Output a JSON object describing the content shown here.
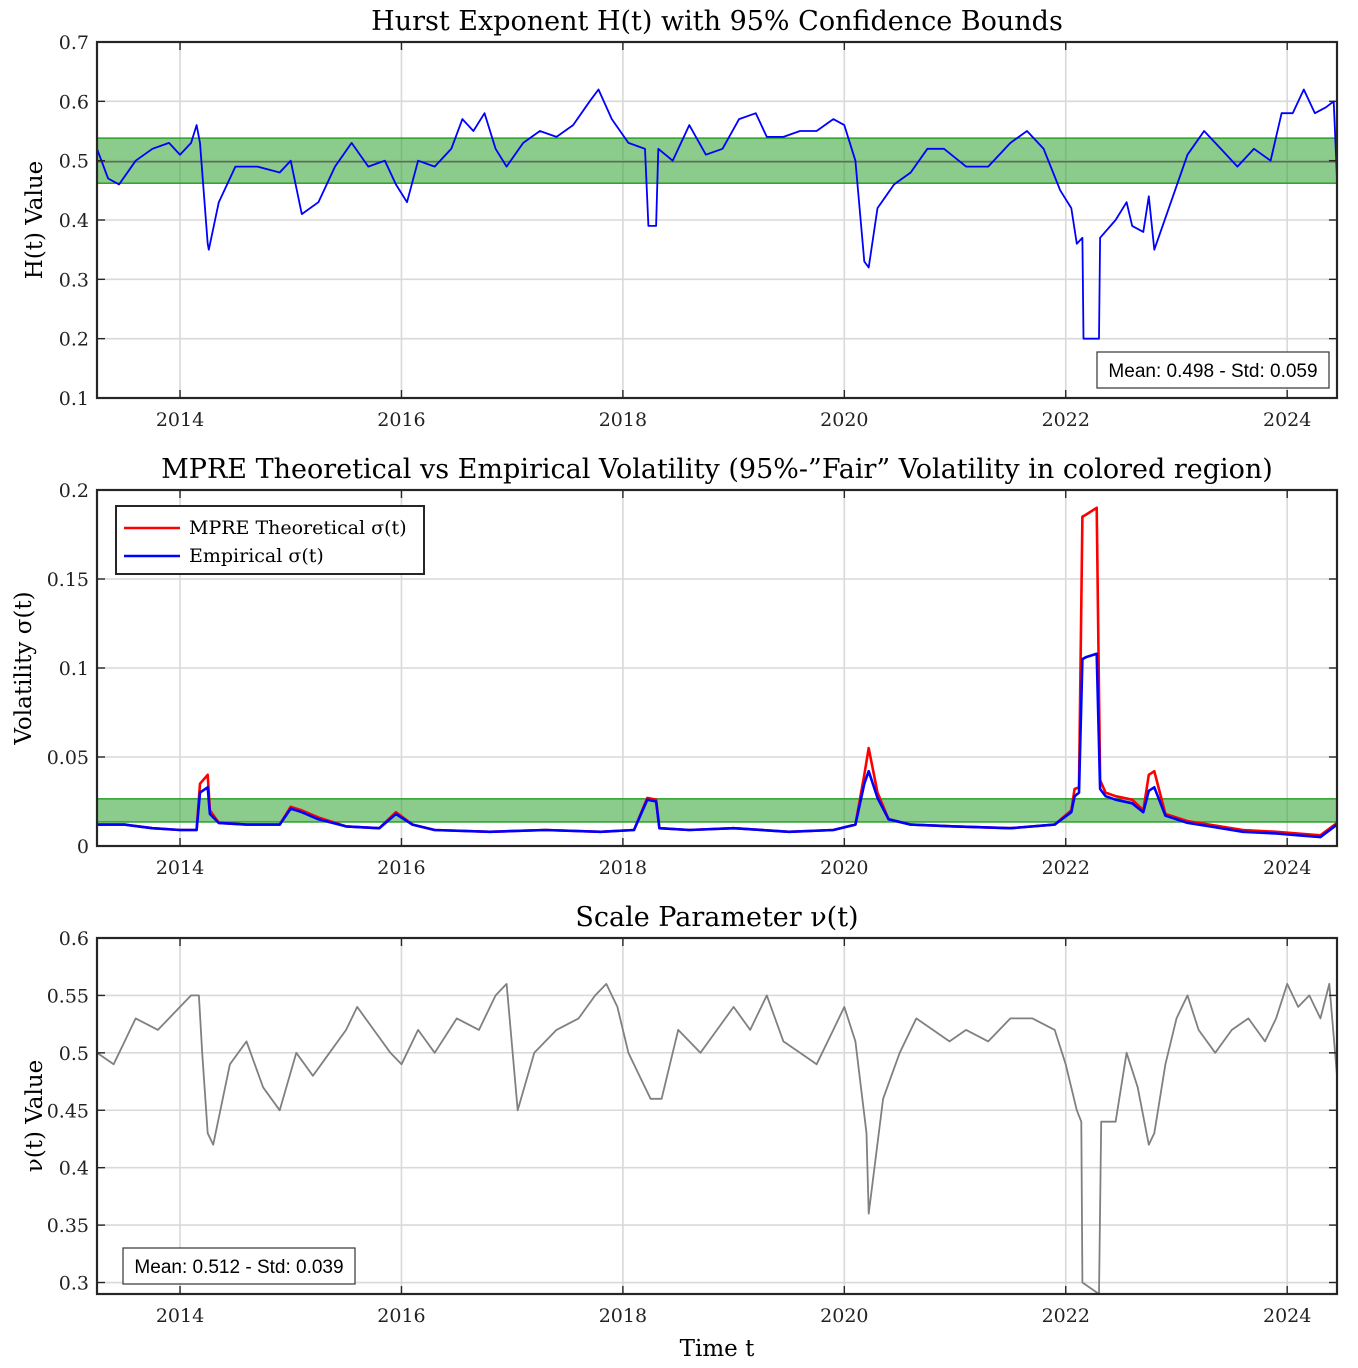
{
  "chart_data": [
    {
      "type": "line",
      "title": "Hurst Exponent H(t) with 95% Confidence Bounds",
      "xlabel": "",
      "ylabel": "H(t) Value",
      "xlim": [
        2013.25,
        2024.45
      ],
      "ylim": [
        0.1,
        0.7
      ],
      "x_ticks": [
        2014,
        2016,
        2018,
        2020,
        2022,
        2024
      ],
      "y_ticks": [
        0.1,
        0.2,
        0.3,
        0.4,
        0.5,
        0.6,
        0.7
      ],
      "y_tick_labels": [
        "0.1",
        "0.2",
        "0.3",
        "0.4",
        "0.5",
        "0.6",
        "0.7"
      ],
      "grid": true,
      "band": {
        "low": 0.462,
        "high": 0.538,
        "color": "#2ca02c"
      },
      "mean_line": 0.498,
      "stat_text": "Mean: 0.498 - Std: 0.059",
      "stat_position": "bottom-right",
      "series": [
        {
          "color": "#0000ff",
          "x": [
            2013.25,
            2013.35,
            2013.45,
            2013.6,
            2013.75,
            2013.9,
            2014.0,
            2014.1,
            2014.15,
            2014.18,
            2014.25,
            2014.26,
            2014.35,
            2014.5,
            2014.7,
            2014.9,
            2015.0,
            2015.1,
            2015.25,
            2015.4,
            2015.55,
            2015.7,
            2015.85,
            2015.95,
            2016.05,
            2016.15,
            2016.3,
            2016.45,
            2016.55,
            2016.65,
            2016.75,
            2016.85,
            2016.95,
            2017.1,
            2017.25,
            2017.4,
            2017.55,
            2017.7,
            2017.78,
            2017.9,
            2018.05,
            2018.2,
            2018.23,
            2018.3,
            2018.32,
            2018.45,
            2018.6,
            2018.75,
            2018.9,
            2019.05,
            2019.2,
            2019.3,
            2019.45,
            2019.6,
            2019.75,
            2019.9,
            2020.0,
            2020.1,
            2020.18,
            2020.22,
            2020.3,
            2020.45,
            2020.6,
            2020.75,
            2020.9,
            2021.1,
            2021.3,
            2021.5,
            2021.65,
            2021.8,
            2021.95,
            2022.05,
            2022.1,
            2022.15,
            2022.16,
            2022.3,
            2022.31,
            2022.45,
            2022.55,
            2022.6,
            2022.7,
            2022.75,
            2022.8,
            2022.95,
            2023.1,
            2023.25,
            2023.4,
            2023.55,
            2023.7,
            2023.85,
            2023.95,
            2024.05,
            2024.15,
            2024.25,
            2024.35,
            2024.42,
            2024.45
          ],
          "y": [
            0.52,
            0.47,
            0.46,
            0.5,
            0.52,
            0.53,
            0.51,
            0.53,
            0.56,
            0.53,
            0.36,
            0.35,
            0.43,
            0.49,
            0.49,
            0.48,
            0.5,
            0.41,
            0.43,
            0.49,
            0.53,
            0.49,
            0.5,
            0.46,
            0.43,
            0.5,
            0.49,
            0.52,
            0.57,
            0.55,
            0.58,
            0.52,
            0.49,
            0.53,
            0.55,
            0.54,
            0.56,
            0.6,
            0.62,
            0.57,
            0.53,
            0.52,
            0.39,
            0.39,
            0.52,
            0.5,
            0.56,
            0.51,
            0.52,
            0.57,
            0.58,
            0.54,
            0.54,
            0.55,
            0.55,
            0.57,
            0.56,
            0.5,
            0.33,
            0.32,
            0.42,
            0.46,
            0.48,
            0.52,
            0.52,
            0.49,
            0.49,
            0.53,
            0.55,
            0.52,
            0.45,
            0.42,
            0.36,
            0.37,
            0.2,
            0.2,
            0.37,
            0.4,
            0.43,
            0.39,
            0.38,
            0.44,
            0.35,
            0.43,
            0.51,
            0.55,
            0.52,
            0.49,
            0.52,
            0.5,
            0.58,
            0.58,
            0.62,
            0.58,
            0.59,
            0.6,
            0.47
          ]
        }
      ]
    },
    {
      "type": "line",
      "title": "MPRE Theoretical vs Empirical Volatility (95%-”Fair” Volatility in colored region)",
      "xlabel": "",
      "ylabel": "Volatility σ(t)",
      "xlim": [
        2013.25,
        2024.45
      ],
      "ylim": [
        0,
        0.2
      ],
      "x_ticks": [
        2014,
        2016,
        2018,
        2020,
        2022,
        2024
      ],
      "y_ticks": [
        0,
        0.05,
        0.1,
        0.15,
        0.2
      ],
      "y_tick_labels": [
        "0",
        "0.05",
        "0.1",
        "0.15",
        "0.2"
      ],
      "grid": true,
      "band": {
        "low": 0.0135,
        "high": 0.0265,
        "color": "#2ca02c"
      },
      "legend": {
        "position": "top-left"
      },
      "series": [
        {
          "name": "MPRE Theoretical σ(t)",
          "color": "#ff0000",
          "x": [
            2013.25,
            2013.5,
            2013.75,
            2014.0,
            2014.15,
            2014.18,
            2014.25,
            2014.27,
            2014.35,
            2014.6,
            2014.9,
            2015.0,
            2015.1,
            2015.25,
            2015.5,
            2015.8,
            2015.95,
            2016.1,
            2016.3,
            2016.8,
            2017.3,
            2017.8,
            2018.1,
            2018.22,
            2018.3,
            2018.33,
            2018.6,
            2019.0,
            2019.5,
            2019.9,
            2020.1,
            2020.18,
            2020.22,
            2020.3,
            2020.4,
            2020.6,
            2021.0,
            2021.5,
            2021.9,
            2022.05,
            2022.08,
            2022.12,
            2022.15,
            2022.18,
            2022.28,
            2022.31,
            2022.36,
            2022.45,
            2022.6,
            2022.7,
            2022.75,
            2022.8,
            2022.9,
            2023.1,
            2023.3,
            2023.6,
            2023.9,
            2024.1,
            2024.3,
            2024.45
          ],
          "y": [
            0.012,
            0.012,
            0.01,
            0.009,
            0.009,
            0.035,
            0.04,
            0.02,
            0.013,
            0.012,
            0.012,
            0.022,
            0.02,
            0.016,
            0.011,
            0.01,
            0.019,
            0.012,
            0.009,
            0.008,
            0.009,
            0.008,
            0.009,
            0.027,
            0.026,
            0.01,
            0.009,
            0.01,
            0.008,
            0.009,
            0.012,
            0.04,
            0.055,
            0.03,
            0.015,
            0.012,
            0.011,
            0.01,
            0.012,
            0.02,
            0.032,
            0.033,
            0.185,
            0.186,
            0.19,
            0.037,
            0.03,
            0.028,
            0.026,
            0.02,
            0.04,
            0.042,
            0.018,
            0.014,
            0.012,
            0.009,
            0.008,
            0.007,
            0.006,
            0.013
          ]
        },
        {
          "name": "Empirical σ(t)",
          "color": "#0000ff",
          "x": [
            2013.25,
            2013.5,
            2013.75,
            2014.0,
            2014.15,
            2014.18,
            2014.25,
            2014.27,
            2014.35,
            2014.6,
            2014.9,
            2015.0,
            2015.1,
            2015.25,
            2015.5,
            2015.8,
            2015.95,
            2016.1,
            2016.3,
            2016.8,
            2017.3,
            2017.8,
            2018.1,
            2018.22,
            2018.3,
            2018.33,
            2018.6,
            2019.0,
            2019.5,
            2019.9,
            2020.1,
            2020.18,
            2020.22,
            2020.3,
            2020.4,
            2020.6,
            2021.0,
            2021.5,
            2021.9,
            2022.05,
            2022.08,
            2022.12,
            2022.15,
            2022.18,
            2022.28,
            2022.31,
            2022.36,
            2022.45,
            2022.6,
            2022.7,
            2022.75,
            2022.8,
            2022.9,
            2023.1,
            2023.3,
            2023.6,
            2023.9,
            2024.1,
            2024.3,
            2024.45
          ],
          "y": [
            0.012,
            0.012,
            0.01,
            0.009,
            0.009,
            0.03,
            0.033,
            0.018,
            0.013,
            0.012,
            0.012,
            0.021,
            0.019,
            0.015,
            0.011,
            0.01,
            0.018,
            0.012,
            0.009,
            0.008,
            0.009,
            0.008,
            0.009,
            0.026,
            0.025,
            0.01,
            0.009,
            0.01,
            0.008,
            0.009,
            0.012,
            0.035,
            0.042,
            0.027,
            0.015,
            0.012,
            0.011,
            0.01,
            0.012,
            0.019,
            0.028,
            0.03,
            0.105,
            0.106,
            0.108,
            0.032,
            0.028,
            0.026,
            0.024,
            0.019,
            0.031,
            0.033,
            0.017,
            0.013,
            0.011,
            0.008,
            0.007,
            0.006,
            0.005,
            0.012
          ]
        }
      ]
    },
    {
      "type": "line",
      "title": "Scale Parameter ν(t)",
      "xlabel": "Time t",
      "ylabel": "ν(t) Value",
      "xlim": [
        2013.25,
        2024.45
      ],
      "ylim": [
        0.29,
        0.6
      ],
      "x_ticks": [
        2014,
        2016,
        2018,
        2020,
        2022,
        2024
      ],
      "y_ticks": [
        0.3,
        0.35,
        0.4,
        0.45,
        0.5,
        0.55,
        0.6
      ],
      "y_tick_labels": [
        "0.3",
        "0.35",
        "0.4",
        "0.45",
        "0.5",
        "0.55",
        "0.6"
      ],
      "grid": true,
      "stat_text": "Mean: 0.512 - Std: 0.039",
      "stat_position": "bottom-left",
      "series": [
        {
          "color": "#808080",
          "x": [
            2013.25,
            2013.4,
            2013.6,
            2013.8,
            2014.0,
            2014.1,
            2014.17,
            2014.2,
            2014.25,
            2014.3,
            2014.45,
            2014.6,
            2014.75,
            2014.9,
            2015.05,
            2015.2,
            2015.35,
            2015.5,
            2015.6,
            2015.75,
            2015.9,
            2016.0,
            2016.15,
            2016.3,
            2016.5,
            2016.7,
            2016.85,
            2016.95,
            2017.05,
            2017.2,
            2017.4,
            2017.6,
            2017.75,
            2017.85,
            2017.95,
            2018.05,
            2018.2,
            2018.25,
            2018.35,
            2018.5,
            2018.7,
            2018.85,
            2019.0,
            2019.15,
            2019.3,
            2019.45,
            2019.6,
            2019.75,
            2019.9,
            2020.0,
            2020.1,
            2020.2,
            2020.22,
            2020.35,
            2020.5,
            2020.65,
            2020.8,
            2020.95,
            2021.1,
            2021.3,
            2021.5,
            2021.7,
            2021.9,
            2022.0,
            2022.1,
            2022.14,
            2022.15,
            2022.3,
            2022.32,
            2022.45,
            2022.55,
            2022.65,
            2022.75,
            2022.8,
            2022.9,
            2023.0,
            2023.1,
            2023.2,
            2023.35,
            2023.5,
            2023.65,
            2023.8,
            2023.9,
            2024.0,
            2024.1,
            2024.2,
            2024.3,
            2024.38,
            2024.45
          ],
          "y": [
            0.5,
            0.49,
            0.53,
            0.52,
            0.54,
            0.55,
            0.55,
            0.5,
            0.43,
            0.42,
            0.49,
            0.51,
            0.47,
            0.45,
            0.5,
            0.48,
            0.5,
            0.52,
            0.54,
            0.52,
            0.5,
            0.49,
            0.52,
            0.5,
            0.53,
            0.52,
            0.55,
            0.56,
            0.45,
            0.5,
            0.52,
            0.53,
            0.55,
            0.56,
            0.54,
            0.5,
            0.47,
            0.46,
            0.46,
            0.52,
            0.5,
            0.52,
            0.54,
            0.52,
            0.55,
            0.51,
            0.5,
            0.49,
            0.52,
            0.54,
            0.51,
            0.43,
            0.36,
            0.46,
            0.5,
            0.53,
            0.52,
            0.51,
            0.52,
            0.51,
            0.53,
            0.53,
            0.52,
            0.49,
            0.45,
            0.44,
            0.3,
            0.29,
            0.44,
            0.44,
            0.5,
            0.47,
            0.42,
            0.43,
            0.49,
            0.53,
            0.55,
            0.52,
            0.5,
            0.52,
            0.53,
            0.51,
            0.53,
            0.56,
            0.54,
            0.55,
            0.53,
            0.56,
            0.48
          ]
        }
      ]
    }
  ]
}
